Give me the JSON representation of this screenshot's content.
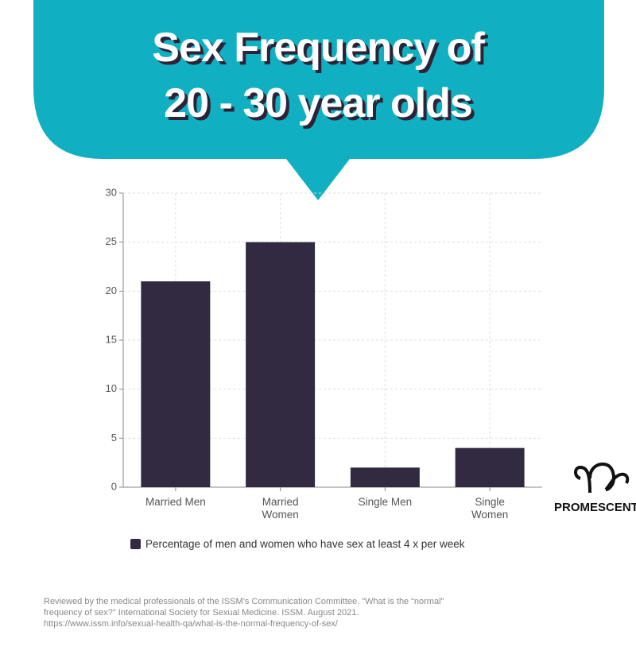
{
  "chart_data": {
    "type": "bar",
    "title": [
      "Sex Frequency of",
      "20 - 30 year olds"
    ],
    "categories": [
      "Married Men",
      "Married Women",
      "Single Men",
      "Single Women"
    ],
    "series": [
      {
        "name": "Percentage of men and women who have sex at least 4 x per week",
        "color": "#312a40",
        "values": [
          21,
          25,
          2,
          4
        ]
      }
    ],
    "ylim": [
      0,
      30
    ],
    "yticks": [
      0,
      5,
      10,
      15,
      20,
      25,
      30
    ],
    "grid": true,
    "logo": "PROMESCENT",
    "source": [
      "Reviewed by the medical professionals of the ISSM’s Communication Committee. \"What is the “normal”",
      "frequency of sex?\" International Society for Sexual Medicine. ISSM. August 2021.",
      "https://www.issm.info/sexual-health-qa/what-is-the-normal-frequency-of-sex/"
    ]
  }
}
